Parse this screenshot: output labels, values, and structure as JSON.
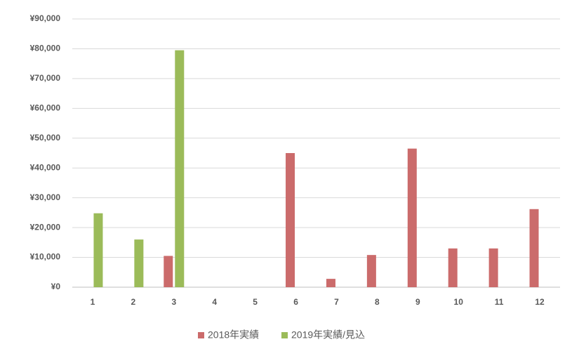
{
  "chart_data": {
    "type": "bar",
    "categories": [
      "1",
      "2",
      "3",
      "4",
      "5",
      "6",
      "7",
      "8",
      "9",
      "10",
      "11",
      "12"
    ],
    "series": [
      {
        "name": "2018年実績",
        "color": "#cb6b6b",
        "values": [
          null,
          null,
          10500,
          null,
          null,
          45000,
          2800,
          10800,
          46500,
          13000,
          13000,
          26200
        ]
      },
      {
        "name": "2019年実績/見込",
        "color": "#9bbb59",
        "values": [
          24800,
          16000,
          79500,
          null,
          null,
          null,
          null,
          null,
          null,
          null,
          null,
          null
        ]
      }
    ],
    "ylim": [
      0,
      90000
    ],
    "yticks": [
      {
        "value": 0,
        "label": "¥0"
      },
      {
        "value": 10000,
        "label": "¥10,000"
      },
      {
        "value": 20000,
        "label": "¥20,000"
      },
      {
        "value": 30000,
        "label": "¥30,000"
      },
      {
        "value": 40000,
        "label": "¥40,000"
      },
      {
        "value": 50000,
        "label": "¥50,000"
      },
      {
        "value": 60000,
        "label": "¥60,000"
      },
      {
        "value": 70000,
        "label": "¥70,000"
      },
      {
        "value": 80000,
        "label": "¥80,000"
      },
      {
        "value": 90000,
        "label": "¥90,000"
      }
    ],
    "grid": true,
    "legend": "bottom"
  }
}
